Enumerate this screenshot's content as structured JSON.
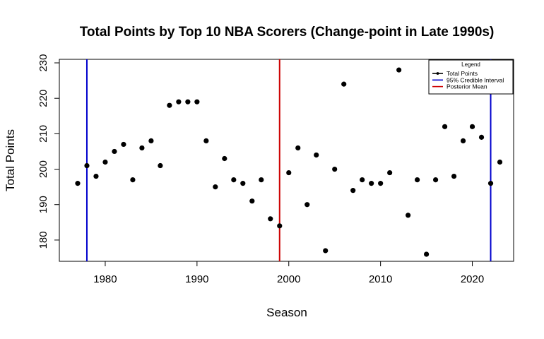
{
  "chart_data": {
    "type": "scatter",
    "title": "Total Points by Top 10 NBA Scorers (Change-point in Late 1990s)",
    "xlabel": "Season",
    "ylabel": "Total Points",
    "xlim": [
      1975,
      2024.5
    ],
    "ylim": [
      174,
      231
    ],
    "x_ticks": [
      1980,
      1990,
      2000,
      2010,
      2020
    ],
    "y_ticks": [
      180,
      190,
      200,
      210,
      220,
      230
    ],
    "grid": false,
    "legend": {
      "title": "Legend",
      "position": "top-right",
      "entries": [
        {
          "label": "Total Points",
          "color": "#000000",
          "style": "line-point"
        },
        {
          "label": "95% Credible Interval",
          "color": "#0000CD",
          "style": "line"
        },
        {
          "label": "Posterior Mean",
          "color": "#CD0000",
          "style": "line"
        }
      ]
    },
    "series": [
      {
        "name": "Total Points",
        "color": "#000000",
        "points": [
          {
            "x": 1977,
            "y": 196
          },
          {
            "x": 1978,
            "y": 201
          },
          {
            "x": 1979,
            "y": 198
          },
          {
            "x": 1980,
            "y": 202
          },
          {
            "x": 1981,
            "y": 205
          },
          {
            "x": 1982,
            "y": 207
          },
          {
            "x": 1983,
            "y": 197
          },
          {
            "x": 1984,
            "y": 206
          },
          {
            "x": 1985,
            "y": 208
          },
          {
            "x": 1986,
            "y": 201
          },
          {
            "x": 1987,
            "y": 218
          },
          {
            "x": 1988,
            "y": 219
          },
          {
            "x": 1989,
            "y": 219
          },
          {
            "x": 1990,
            "y": 219
          },
          {
            "x": 1991,
            "y": 208
          },
          {
            "x": 1992,
            "y": 195
          },
          {
            "x": 1993,
            "y": 203
          },
          {
            "x": 1994,
            "y": 197
          },
          {
            "x": 1995,
            "y": 196
          },
          {
            "x": 1996,
            "y": 191
          },
          {
            "x": 1997,
            "y": 197
          },
          {
            "x": 1998,
            "y": 186
          },
          {
            "x": 1999,
            "y": 184
          },
          {
            "x": 2000,
            "y": 199
          },
          {
            "x": 2001,
            "y": 206
          },
          {
            "x": 2002,
            "y": 190
          },
          {
            "x": 2003,
            "y": 204
          },
          {
            "x": 2004,
            "y": 177
          },
          {
            "x": 2005,
            "y": 200
          },
          {
            "x": 2006,
            "y": 224
          },
          {
            "x": 2007,
            "y": 194
          },
          {
            "x": 2008,
            "y": 197
          },
          {
            "x": 2009,
            "y": 196
          },
          {
            "x": 2010,
            "y": 196
          },
          {
            "x": 2011,
            "y": 199
          },
          {
            "x": 2012,
            "y": 228
          },
          {
            "x": 2013,
            "y": 187
          },
          {
            "x": 2014,
            "y": 197
          },
          {
            "x": 2015,
            "y": 176
          },
          {
            "x": 2016,
            "y": 197
          },
          {
            "x": 2017,
            "y": 212
          },
          {
            "x": 2018,
            "y": 198
          },
          {
            "x": 2019,
            "y": 208
          },
          {
            "x": 2020,
            "y": 212
          },
          {
            "x": 2021,
            "y": 209
          },
          {
            "x": 2022,
            "y": 196
          },
          {
            "x": 2023,
            "y": 202
          }
        ]
      }
    ],
    "vertical_lines": [
      {
        "name": "95% Credible Interval",
        "x": 1978,
        "color": "#0000CD"
      },
      {
        "name": "Posterior Mean",
        "x": 1999,
        "color": "#CD0000"
      },
      {
        "name": "95% Credible Interval",
        "x": 2022,
        "color": "#0000CD"
      }
    ]
  }
}
